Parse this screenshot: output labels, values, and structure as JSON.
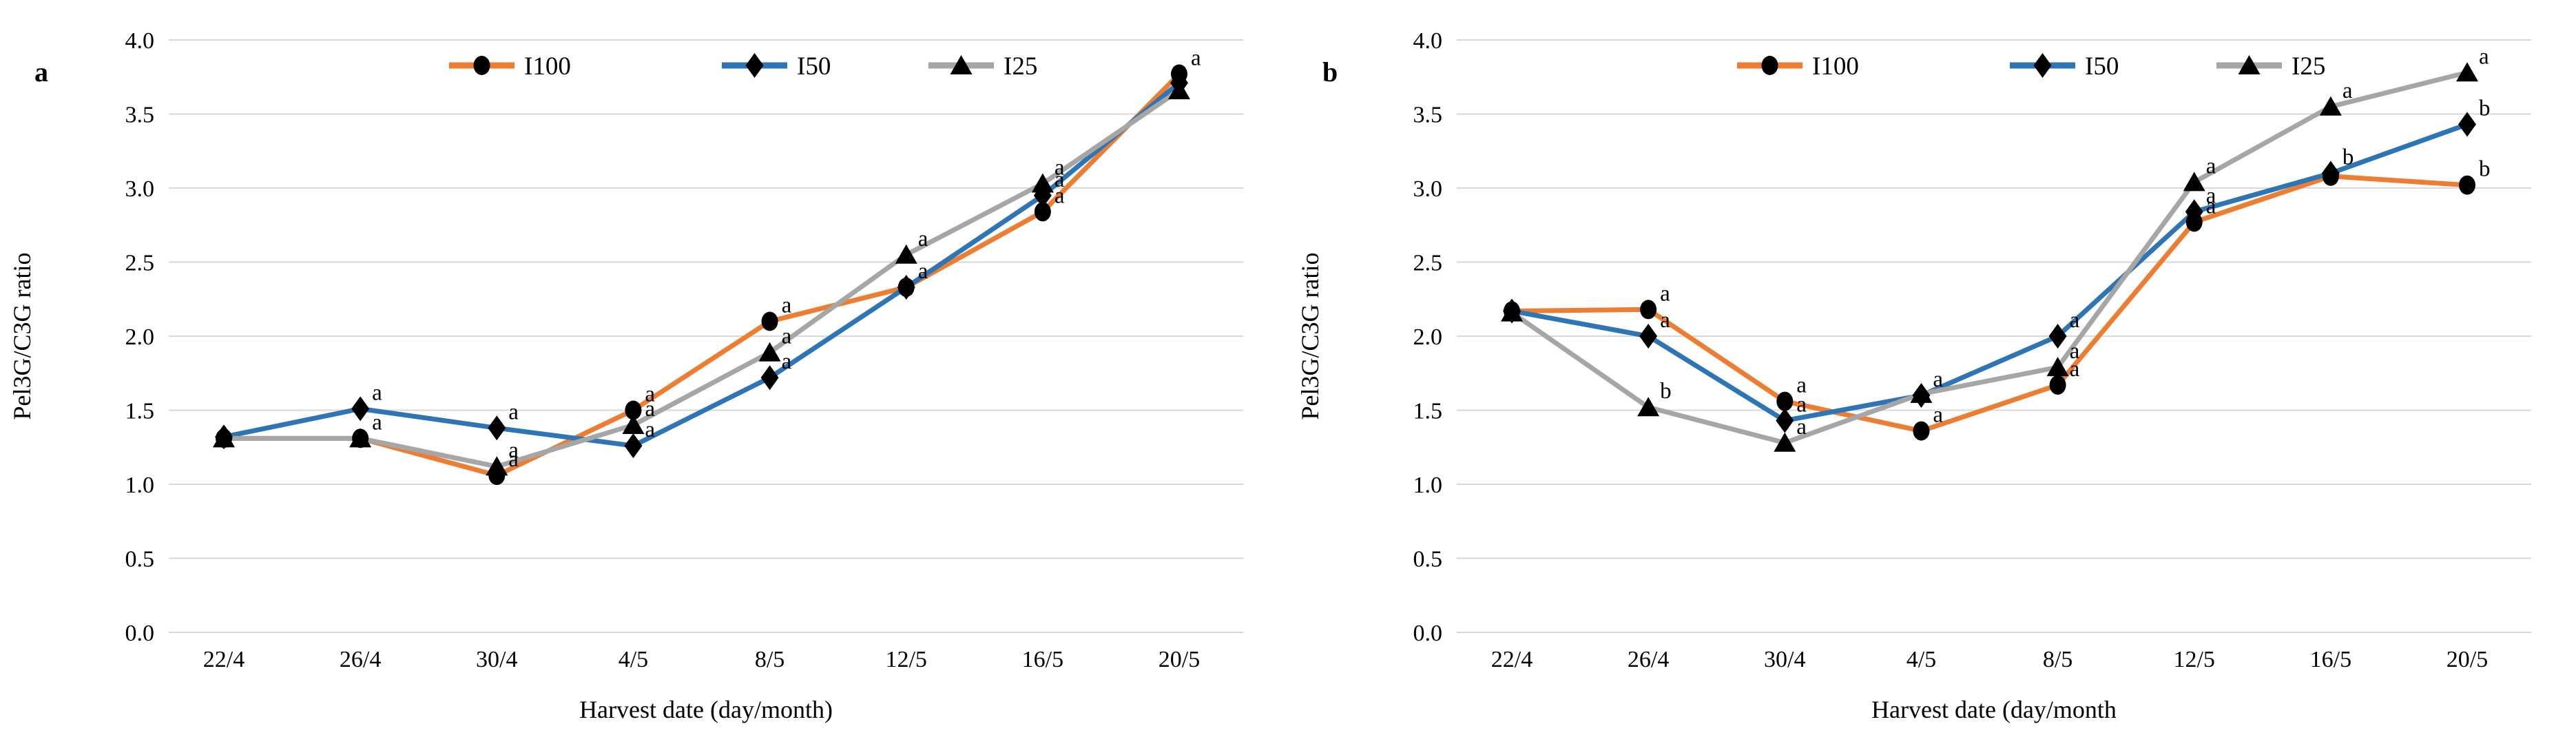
{
  "figure": {
    "description": "Two-panel line chart figure showing Pel3G/C3G ratio over harvest dates",
    "colors": {
      "orange": "#ED7D31",
      "blue": "#2E75B6",
      "gray": "#A6A6A6",
      "gridline": "#D9D9D9",
      "marker": "#000000",
      "text": "#000000"
    }
  },
  "chart_data": [
    {
      "type": "line",
      "panel_label": "a",
      "title": "",
      "xlabel": "Harvest date (day/month)",
      "ylabel": "Pel3G/C3G ratio",
      "ylim": [
        0.0,
        4.0
      ],
      "ytick_step": 0.5,
      "y_ticks": [
        "0.0",
        "0.5",
        "1.0",
        "1.5",
        "2.0",
        "2.5",
        "3.0",
        "3.5",
        "4.0"
      ],
      "grid": true,
      "legend_position": "top",
      "categories": [
        "22/4",
        "26/4",
        "30/4",
        "4/5",
        "8/5",
        "12/5",
        "16/5",
        "20/5"
      ],
      "series": [
        {
          "name": "I100",
          "color": "#ED7D31",
          "marker": "circle",
          "values": [
            1.31,
            1.31,
            1.06,
            1.5,
            2.1,
            2.33,
            2.84,
            3.77
          ],
          "point_labels": [
            "",
            "",
            "a",
            "a",
            "a",
            "",
            "a",
            "a"
          ]
        },
        {
          "name": "I50",
          "color": "#2E75B6",
          "marker": "diamond",
          "values": [
            1.32,
            1.51,
            1.38,
            1.26,
            1.72,
            2.33,
            2.95,
            3.71
          ],
          "point_labels": [
            "",
            "a",
            "a",
            "a",
            "a",
            "a",
            "a",
            ""
          ]
        },
        {
          "name": "I25",
          "color": "#A6A6A6",
          "marker": "triangle",
          "values": [
            1.31,
            1.31,
            1.12,
            1.4,
            1.89,
            2.55,
            3.03,
            3.66
          ],
          "point_labels": [
            "",
            "a",
            "a",
            "a",
            "a",
            "a",
            "a",
            ""
          ]
        }
      ]
    },
    {
      "type": "line",
      "panel_label": "b",
      "title": "",
      "xlabel": "Harvest date (day/month",
      "ylabel": "Pel3G/C3G ratio",
      "ylim": [
        0.0,
        4.0
      ],
      "ytick_step": 0.5,
      "y_ticks": [
        "0.0",
        "0.5",
        "1.0",
        "1.5",
        "2.0",
        "2.5",
        "3.0",
        "3.5",
        "4.0"
      ],
      "grid": true,
      "legend_position": "top",
      "categories": [
        "22/4",
        "26/4",
        "30/4",
        "4/5",
        "8/5",
        "12/5",
        "16/5",
        "20/5"
      ],
      "series": [
        {
          "name": "I100",
          "color": "#ED7D31",
          "marker": "circle",
          "values": [
            2.17,
            2.18,
            1.56,
            1.36,
            1.67,
            2.77,
            3.08,
            3.02
          ],
          "point_labels": [
            "",
            "a",
            "a",
            "a",
            "a",
            "a",
            "",
            "b"
          ]
        },
        {
          "name": "I50",
          "color": "#2E75B6",
          "marker": "diamond",
          "values": [
            2.17,
            2.0,
            1.43,
            1.6,
            2.0,
            2.84,
            3.1,
            3.43
          ],
          "point_labels": [
            "",
            "a",
            "a",
            "a",
            "a",
            "a",
            "b",
            "b"
          ]
        },
        {
          "name": "I25",
          "color": "#A6A6A6",
          "marker": "triangle",
          "values": [
            2.16,
            1.52,
            1.28,
            1.61,
            1.79,
            3.04,
            3.55,
            3.78
          ],
          "point_labels": [
            "",
            "b",
            "a",
            "",
            "a",
            "a",
            "a",
            "a"
          ]
        }
      ]
    }
  ]
}
